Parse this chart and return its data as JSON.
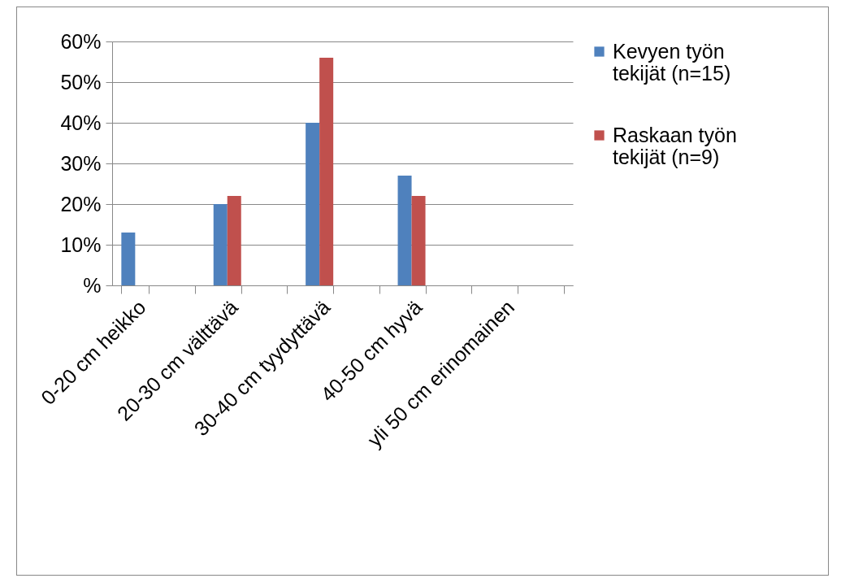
{
  "chart_data": {
    "type": "bar",
    "categories": [
      "0-20 cm heikko",
      null,
      "20-30 cm välttävä",
      null,
      "30-40 cm tyydyttävä",
      null,
      "40-50 cm hyvä",
      null,
      "yli 50 cm erinomainen",
      null
    ],
    "series": [
      {
        "name": "Kevyen työn tekijät (n=15)",
        "color": "#4f81bd",
        "values": [
          13,
          null,
          20,
          null,
          40,
          null,
          27,
          null,
          0,
          null
        ]
      },
      {
        "name": "Raskaan työn tekijät (n=9)",
        "color": "#c0504d",
        "values": [
          0,
          null,
          22,
          null,
          56,
          null,
          22,
          null,
          0,
          null
        ]
      }
    ],
    "ylim": [
      0,
      60
    ],
    "yticks": [
      {
        "value": 0,
        "label": "%"
      },
      {
        "value": 10,
        "label": "10%"
      },
      {
        "value": 20,
        "label": "20%"
      },
      {
        "value": 30,
        "label": "30%"
      },
      {
        "value": 40,
        "label": "40%"
      },
      {
        "value": 50,
        "label": "50%"
      },
      {
        "value": 60,
        "label": "60%"
      }
    ],
    "grid": "y",
    "legend": "right"
  }
}
